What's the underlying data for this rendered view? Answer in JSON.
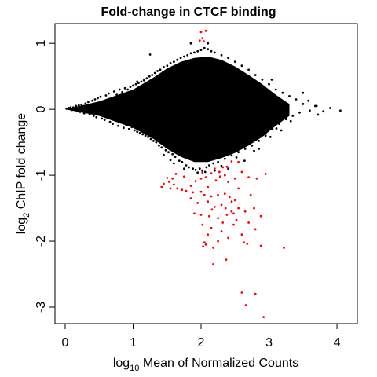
{
  "chart_data": {
    "type": "scatter",
    "title": "Fold-change in CTCF binding",
    "xlabel": {
      "prefix": "log",
      "subscript": "10",
      "suffix": " Mean of Normalized Counts"
    },
    "ylabel": {
      "prefix": "log",
      "subscript": "2",
      "suffix": " ChIP fold change"
    },
    "xlim": [
      -0.15,
      4.3
    ],
    "ylim": [
      -3.25,
      1.3
    ],
    "x_ticks": [
      0,
      1,
      2,
      3,
      4
    ],
    "x_tick_labels": [
      "0",
      "1",
      "2",
      "3",
      "4"
    ],
    "y_ticks": [
      1,
      0,
      -1,
      -2,
      -3
    ],
    "y_tick_labels": [
      "1",
      "0",
      "-1",
      "-2",
      "-3"
    ],
    "grid": false,
    "legend": "none",
    "colors": {
      "background_points": "#000000",
      "significant_points": "#ff0000"
    },
    "series": [
      {
        "color": "#000000",
        "points": [
          [
            0.02,
            0.01
          ],
          [
            0.05,
            0.02
          ],
          [
            0.08,
            0.03
          ],
          [
            0.1,
            -0.01
          ],
          [
            0.12,
            0.03
          ],
          [
            0.14,
            0.0
          ],
          [
            0.16,
            0.05
          ],
          [
            0.18,
            -0.02
          ],
          [
            0.2,
            0.06
          ],
          [
            0.22,
            -0.04
          ],
          [
            0.24,
            0.07
          ],
          [
            0.26,
            0.02
          ],
          [
            0.28,
            -0.06
          ],
          [
            0.3,
            0.09
          ],
          [
            0.32,
            -0.03
          ],
          [
            0.34,
            0.11
          ],
          [
            0.36,
            -0.08
          ],
          [
            0.38,
            0.05
          ],
          [
            0.4,
            0.13
          ],
          [
            0.42,
            -0.1
          ],
          [
            0.44,
            0.15
          ],
          [
            0.46,
            -0.12
          ],
          [
            0.48,
            0.17
          ],
          [
            0.5,
            -0.06
          ],
          [
            0.52,
            0.19
          ],
          [
            0.54,
            -0.14
          ],
          [
            0.56,
            0.12
          ],
          [
            0.58,
            -0.16
          ],
          [
            0.6,
            0.21
          ],
          [
            0.62,
            -0.11
          ],
          [
            0.64,
            0.24
          ],
          [
            0.66,
            -0.19
          ],
          [
            0.68,
            0.17
          ],
          [
            0.7,
            -0.22
          ],
          [
            0.72,
            0.27
          ],
          [
            0.74,
            -0.15
          ],
          [
            0.76,
            0.22
          ],
          [
            0.78,
            -0.25
          ],
          [
            0.8,
            0.3
          ],
          [
            0.82,
            -0.2
          ],
          [
            0.84,
            0.26
          ],
          [
            0.86,
            -0.28
          ],
          [
            0.88,
            0.32
          ],
          [
            0.9,
            -0.24
          ],
          [
            0.92,
            0.3
          ],
          [
            0.94,
            -0.3
          ],
          [
            0.96,
            0.34
          ],
          [
            0.98,
            -0.27
          ],
          [
            1.0,
            0.36
          ],
          [
            1.02,
            -0.32
          ],
          [
            1.04,
            0.38
          ],
          [
            1.06,
            -0.34
          ],
          [
            1.08,
            0.4
          ],
          [
            1.1,
            -0.36
          ],
          [
            1.12,
            0.42
          ],
          [
            1.14,
            -0.38
          ],
          [
            1.16,
            0.44
          ],
          [
            1.18,
            -0.4
          ],
          [
            1.2,
            0.47
          ],
          [
            1.22,
            -0.42
          ],
          [
            1.24,
            0.5
          ],
          [
            1.26,
            -0.45
          ],
          [
            1.28,
            0.52
          ],
          [
            1.3,
            -0.48
          ],
          [
            1.32,
            0.55
          ],
          [
            1.34,
            -0.5
          ],
          [
            1.36,
            0.58
          ],
          [
            1.38,
            -0.55
          ],
          [
            1.4,
            0.6
          ],
          [
            1.42,
            -0.58
          ],
          [
            1.45,
            0.64
          ],
          [
            1.48,
            -0.62
          ],
          [
            1.5,
            0.66
          ],
          [
            1.52,
            -0.65
          ],
          [
            1.55,
            0.7
          ],
          [
            1.58,
            -0.68
          ],
          [
            1.6,
            0.72
          ],
          [
            1.62,
            -0.72
          ],
          [
            1.65,
            0.75
          ],
          [
            1.68,
            -0.78
          ],
          [
            1.7,
            0.78
          ],
          [
            1.72,
            -0.8
          ],
          [
            1.75,
            0.8
          ],
          [
            1.78,
            -0.85
          ],
          [
            1.8,
            0.82
          ],
          [
            1.82,
            -0.88
          ],
          [
            1.85,
            0.85
          ],
          [
            1.88,
            -0.9
          ],
          [
            1.9,
            0.86
          ],
          [
            1.92,
            -0.92
          ],
          [
            1.95,
            0.88
          ],
          [
            1.98,
            -0.9
          ],
          [
            2.0,
            0.9
          ],
          [
            2.02,
            -0.93
          ],
          [
            2.05,
            0.93
          ],
          [
            2.08,
            -0.88
          ],
          [
            2.1,
            0.91
          ],
          [
            2.12,
            -0.85
          ],
          [
            2.15,
            0.88
          ],
          [
            2.18,
            -0.82
          ],
          [
            2.2,
            0.86
          ],
          [
            2.25,
            -0.8
          ],
          [
            2.3,
            0.82
          ],
          [
            2.35,
            -0.75
          ],
          [
            2.4,
            0.78
          ],
          [
            2.45,
            -0.7
          ],
          [
            2.5,
            0.72
          ],
          [
            2.55,
            -0.65
          ],
          [
            2.6,
            0.66
          ],
          [
            2.65,
            -0.6
          ],
          [
            2.7,
            0.6
          ],
          [
            2.75,
            -0.55
          ],
          [
            2.8,
            0.52
          ],
          [
            2.85,
            -0.48
          ],
          [
            2.9,
            0.45
          ],
          [
            2.95,
            -0.4
          ],
          [
            3.0,
            0.38
          ],
          [
            3.05,
            -0.3
          ],
          [
            3.1,
            0.3
          ],
          [
            3.15,
            -0.22
          ],
          [
            3.2,
            0.25
          ],
          [
            3.25,
            -0.15
          ],
          [
            3.3,
            0.2
          ],
          [
            3.35,
            -0.1
          ],
          [
            3.4,
            0.15
          ],
          [
            3.45,
            -0.05
          ],
          [
            3.5,
            0.08
          ],
          [
            3.6,
            -0.02
          ],
          [
            3.7,
            0.05
          ],
          [
            3.8,
            -0.03
          ],
          [
            3.9,
            0.02
          ],
          [
            4.05,
            -0.02
          ],
          [
            1.25,
            0.83
          ],
          [
            1.06,
            0.42
          ],
          [
            1.85,
            1.0
          ],
          [
            2.1,
            1.0
          ],
          [
            3.04,
            0.45
          ],
          [
            2.91,
            0.18
          ],
          [
            3.5,
            0.25
          ],
          [
            3.68,
            0.05
          ],
          [
            3.58,
            0.13
          ],
          [
            3.72,
            -0.08
          ],
          [
            3.08,
            -0.1
          ],
          [
            3.32,
            -0.18
          ],
          [
            3.18,
            -0.32
          ],
          [
            2.78,
            -0.63
          ],
          [
            1.95,
            -0.96
          ],
          [
            2.3,
            -0.86
          ],
          [
            2.52,
            -0.73
          ],
          [
            2.64,
            -0.78
          ],
          [
            2.85,
            -0.6
          ],
          [
            1.75,
            -0.9
          ],
          [
            1.6,
            -0.82
          ],
          [
            1.55,
            -0.77
          ],
          [
            1.45,
            -0.69
          ],
          [
            2.2,
            -0.93
          ],
          [
            2.4,
            -0.9
          ],
          [
            3.02,
            -0.42
          ],
          [
            3.11,
            -0.29
          ],
          [
            2.06,
            -0.95
          ]
        ]
      },
      {
        "color": "#ff0000",
        "points": [
          [
            2.0,
            1.17
          ],
          [
            2.07,
            1.19
          ],
          [
            2.02,
            1.08
          ],
          [
            1.98,
            1.04
          ],
          [
            2.04,
            1.03
          ],
          [
            1.5,
            -1.04
          ],
          [
            1.45,
            -1.13
          ],
          [
            1.53,
            -1.1
          ],
          [
            1.58,
            -1.05
          ],
          [
            1.6,
            -1.14
          ],
          [
            1.42,
            -1.18
          ],
          [
            1.55,
            -1.2
          ],
          [
            1.65,
            -1.2
          ],
          [
            1.72,
            -1.22
          ],
          [
            1.78,
            -1.24
          ],
          [
            1.85,
            -1.16
          ],
          [
            1.92,
            -1.09
          ],
          [
            2.0,
            -1.05
          ],
          [
            2.07,
            -1.03
          ],
          [
            2.15,
            -0.97
          ],
          [
            2.2,
            -0.9
          ],
          [
            2.27,
            -0.95
          ],
          [
            2.32,
            -0.88
          ],
          [
            2.38,
            -0.87
          ],
          [
            2.45,
            -0.79
          ],
          [
            2.28,
            -1.02
          ],
          [
            2.22,
            -1.08
          ],
          [
            2.35,
            -1.0
          ],
          [
            2.4,
            -1.1
          ],
          [
            2.5,
            -1.05
          ],
          [
            2.6,
            -0.95
          ],
          [
            2.7,
            -1.03
          ],
          [
            2.82,
            -1.05
          ],
          [
            2.95,
            -0.98
          ],
          [
            2.55,
            -0.8
          ],
          [
            2.1,
            -1.18
          ],
          [
            2.0,
            -1.25
          ],
          [
            2.05,
            -1.3
          ],
          [
            2.15,
            -1.32
          ],
          [
            2.25,
            -1.3
          ],
          [
            2.35,
            -1.28
          ],
          [
            2.42,
            -1.33
          ],
          [
            1.85,
            -1.35
          ],
          [
            1.95,
            -1.42
          ],
          [
            2.1,
            -1.4
          ],
          [
            2.2,
            -1.48
          ],
          [
            2.3,
            -1.45
          ],
          [
            2.45,
            -1.4
          ],
          [
            2.55,
            -1.5
          ],
          [
            2.65,
            -1.55
          ],
          [
            2.78,
            -1.5
          ],
          [
            1.9,
            -1.58
          ],
          [
            2.0,
            -1.6
          ],
          [
            2.12,
            -1.62
          ],
          [
            2.25,
            -1.65
          ],
          [
            2.38,
            -1.6
          ],
          [
            2.52,
            -1.68
          ],
          [
            2.7,
            -1.72
          ],
          [
            2.88,
            -1.62
          ],
          [
            2.02,
            -1.75
          ],
          [
            2.15,
            -1.8
          ],
          [
            2.3,
            -1.85
          ],
          [
            2.48,
            -1.75
          ],
          [
            2.6,
            -1.9
          ],
          [
            2.8,
            -1.82
          ],
          [
            2.1,
            -1.9
          ],
          [
            2.25,
            -2.0
          ],
          [
            2.4,
            -1.95
          ],
          [
            2.05,
            -2.02
          ],
          [
            2.18,
            -2.1
          ],
          [
            2.63,
            -2.02
          ],
          [
            2.68,
            -2.04
          ],
          [
            2.88,
            -2.07
          ],
          [
            3.22,
            -2.1
          ],
          [
            2.03,
            -2.08
          ],
          [
            2.37,
            -2.28
          ],
          [
            2.18,
            -2.35
          ],
          [
            2.6,
            -2.78
          ],
          [
            2.66,
            -2.97
          ],
          [
            2.8,
            -2.8
          ],
          [
            2.92,
            -3.15
          ],
          [
            2.07,
            -2.05
          ],
          [
            2.48,
            -1.58
          ],
          [
            2.32,
            -1.72
          ],
          [
            2.16,
            -1.52
          ],
          [
            1.63,
            -0.98
          ],
          [
            1.75,
            -1.02
          ],
          [
            2.02,
            -0.96
          ],
          [
            2.55,
            -1.2
          ],
          [
            2.45,
            -1.55
          ],
          [
            2.73,
            -1.3
          ],
          [
            1.88,
            -1.26
          ],
          [
            2.36,
            -1.5
          ],
          [
            2.5,
            -1.38
          ]
        ]
      }
    ]
  }
}
